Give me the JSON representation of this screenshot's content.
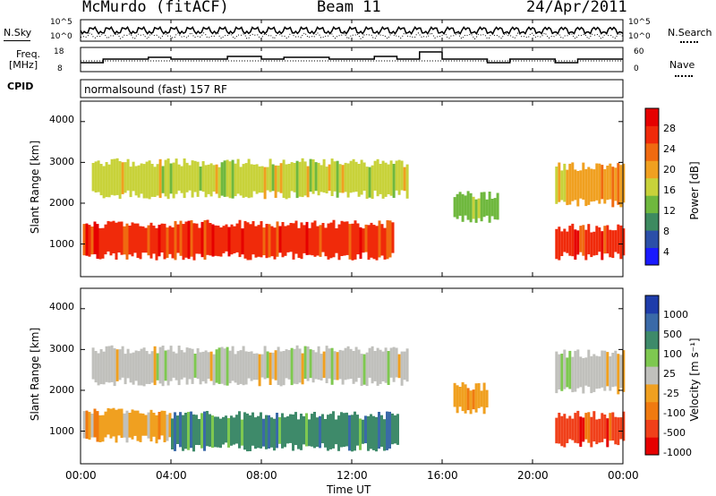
{
  "header": {
    "station": "McMurdo (fitACF)",
    "beam": "Beam 11",
    "date": "24/Apr/2011"
  },
  "noise_panel": {
    "left_label": "N.Sky",
    "right_label": "N.Search",
    "left_ticks": [
      "10^5",
      "10^0"
    ],
    "right_ticks": [
      "10^5",
      "10^0"
    ]
  },
  "freq_panel": {
    "left_label_1": "Freq.",
    "left_label_2": "[MHz]",
    "right_label": "Nave",
    "left_ticks": [
      "18",
      "8"
    ],
    "right_ticks": [
      "60",
      "0"
    ]
  },
  "cpid": {
    "label": "CPID",
    "value": "normalsound (fast) 157 RF"
  },
  "x_axis": {
    "label": "Time UT",
    "ticks": [
      "00:00",
      "04:00",
      "08:00",
      "12:00",
      "16:00",
      "20:00",
      "00:00"
    ]
  },
  "power_panel": {
    "ylabel": "Slant Range [km]",
    "yticks": [
      "4000",
      "3000",
      "2000",
      "1000"
    ],
    "colorbar_label": "Power [dB]",
    "colorbar_ticks": [
      "28",
      "24",
      "20",
      "16",
      "12",
      "8",
      "4"
    ]
  },
  "velocity_panel": {
    "ylabel": "Slant Range [km]",
    "yticks": [
      "4000",
      "3000",
      "2000",
      "1000"
    ],
    "colorbar_label": "Velocity [m s⁻¹]",
    "colorbar_ticks": [
      "1000",
      "500",
      "100",
      "25",
      "-25",
      "-100",
      "-500",
      "-1000"
    ]
  },
  "colors": {
    "power_scale": [
      "#1a1aff",
      "#2b4fa8",
      "#3d8a60",
      "#6fb83e",
      "#c8d23a",
      "#f0a020",
      "#f06a10",
      "#f02a0a",
      "#e60000"
    ],
    "velocity_scale": [
      "#1e3caa",
      "#3a6aa8",
      "#3e8a6a",
      "#7ec850",
      "#c0c0bc",
      "#f0a020",
      "#f07a10",
      "#f0401a",
      "#e60000"
    ]
  },
  "chart_data": [
    {
      "type": "line",
      "title": "McMurdo (fitACF) Beam 11 24/Apr/2011",
      "xlabel": "Time UT",
      "ylabel": "N.Sky / N.Search",
      "x_range_hours": [
        0,
        24
      ],
      "y_scale": "log",
      "ylim": [
        "10^0",
        "10^5"
      ]
    },
    {
      "type": "line",
      "xlabel": "Time UT",
      "ylabel": "Freq. [MHz]",
      "ylim": [
        8,
        18
      ],
      "y2label": "Nave",
      "y2lim": [
        0,
        60
      ]
    },
    {
      "type": "heatmap",
      "xlabel": "Time UT",
      "ylabel": "Slant Range [km]",
      "colorbar": "Power [dB]",
      "x_range_hours": [
        0,
        24
      ],
      "ylim": [
        200,
        4500
      ],
      "clim": [
        0,
        32
      ],
      "regions": [
        {
          "t_start": 0.1,
          "t_end": 13.8,
          "r_low": 600,
          "r_high": 1600,
          "level": 28
        },
        {
          "t_start": 0.5,
          "t_end": 14.5,
          "r_low": 2100,
          "r_high": 3100,
          "level": 16
        },
        {
          "t_start": 16.5,
          "t_end": 18.5,
          "r_low": 1500,
          "r_high": 2300,
          "level": 12
        },
        {
          "t_start": 21.0,
          "t_end": 24.0,
          "r_low": 600,
          "r_high": 1500,
          "level": 28
        },
        {
          "t_start": 21.0,
          "t_end": 24.0,
          "r_low": 1900,
          "r_high": 3000,
          "level": 18
        }
      ]
    },
    {
      "type": "heatmap",
      "xlabel": "Time UT",
      "ylabel": "Slant Range [km]",
      "colorbar": "Velocity [m s^-1]",
      "x_range_hours": [
        0,
        24
      ],
      "ylim": [
        200,
        4500
      ],
      "clim": [
        -1000,
        1000
      ],
      "regions": [
        {
          "t_start": 0.1,
          "t_end": 4.0,
          "r_low": 700,
          "r_high": 1600,
          "level": -100
        },
        {
          "t_start": 4.0,
          "t_end": 14.0,
          "r_low": 500,
          "r_high": 1500,
          "level": 100
        },
        {
          "t_start": 0.5,
          "t_end": 14.5,
          "r_low": 2100,
          "r_high": 3100,
          "level": 0
        },
        {
          "t_start": 16.5,
          "t_end": 18.0,
          "r_low": 1400,
          "r_high": 2200,
          "level": -100
        },
        {
          "t_start": 21.0,
          "t_end": 24.0,
          "r_low": 600,
          "r_high": 1500,
          "level": -500
        },
        {
          "t_start": 21.0,
          "t_end": 24.0,
          "r_low": 1900,
          "r_high": 3000,
          "level": 0
        }
      ]
    }
  ]
}
